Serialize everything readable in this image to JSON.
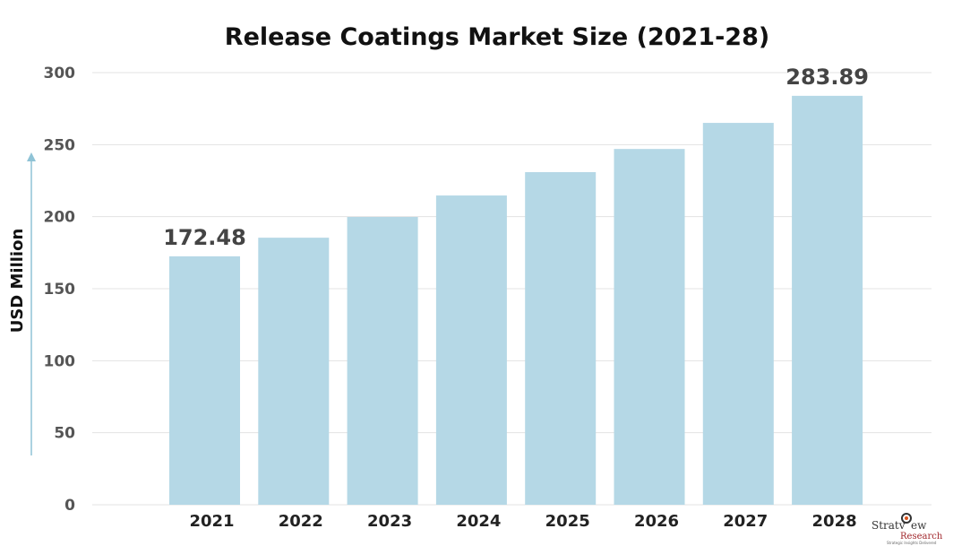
{
  "chart_data": {
    "type": "bar",
    "title": "Release Coatings Market Size (2021-28)",
    "xlabel": "",
    "ylabel": "USD Million",
    "categories": [
      "2021",
      "2022",
      "2023",
      "2024",
      "2025",
      "2026",
      "2027",
      "2028"
    ],
    "values": [
      172.48,
      185.4,
      199.8,
      214.7,
      230.9,
      247.0,
      265.1,
      283.89
    ],
    "data_labels": {
      "2021": "172.48",
      "2028": "283.89"
    },
    "ylim": [
      0,
      300
    ],
    "yticks": [
      0,
      50,
      100,
      150,
      200,
      250,
      300
    ],
    "grid": true,
    "bar_color": "#b5d8e6",
    "axis_arrow_color": "#8fc3d6"
  },
  "logo": {
    "name": "Stratview",
    "sub": "Research",
    "tagline": "Strategic Insights Delivered"
  }
}
